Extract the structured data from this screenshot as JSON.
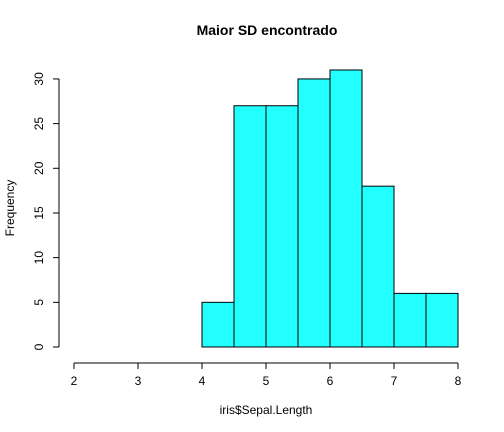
{
  "chart_data": {
    "type": "bar",
    "subtype": "histogram",
    "title": "Maior SD encontrado",
    "xlabel": "iris$Sepal.Length",
    "ylabel": "Frequency",
    "bins": [
      {
        "start": 4.0,
        "end": 4.5,
        "count": 5
      },
      {
        "start": 4.5,
        "end": 5.0,
        "count": 27
      },
      {
        "start": 5.0,
        "end": 5.5,
        "count": 27
      },
      {
        "start": 5.5,
        "end": 6.0,
        "count": 30
      },
      {
        "start": 6.0,
        "end": 6.5,
        "count": 31
      },
      {
        "start": 6.5,
        "end": 7.0,
        "count": 18
      },
      {
        "start": 7.0,
        "end": 7.5,
        "count": 6
      },
      {
        "start": 7.5,
        "end": 8.0,
        "count": 6
      }
    ],
    "xlim": [
      2,
      8
    ],
    "ylim": [
      0,
      31
    ],
    "x_ticks": [
      "2",
      "3",
      "4",
      "5",
      "6",
      "7",
      "8"
    ],
    "y_ticks": [
      "0",
      "5",
      "10",
      "15",
      "20",
      "25",
      "30"
    ],
    "bar_color": "#22ffff",
    "grid": false
  }
}
